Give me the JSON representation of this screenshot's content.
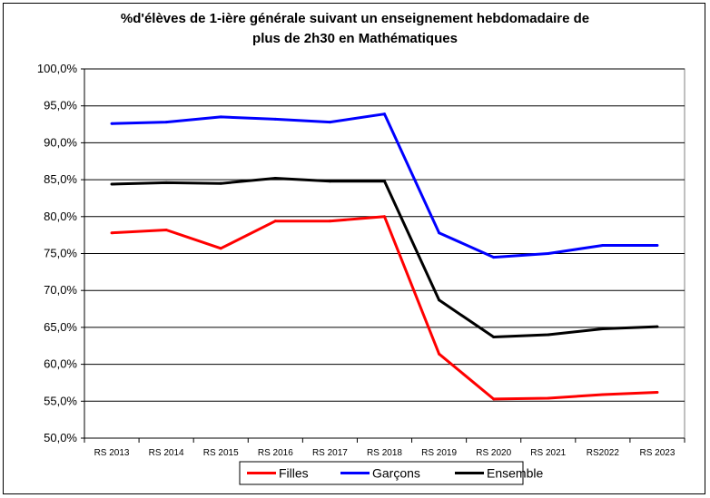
{
  "chart_data": {
    "type": "line",
    "title_line1": "%d'élèves de 1-ière générale suivant un enseignement hebdomadaire de",
    "title_line2": "plus de 2h30 en Mathématiques",
    "categories": [
      "RS 2013",
      "RS 2014",
      "RS 2015",
      "RS 2016",
      "RS 2017",
      "RS 2018",
      "RS 2019",
      "RS 2020",
      "RS 2021",
      "RS2022",
      "RS 2023"
    ],
    "ylim": [
      50,
      100
    ],
    "yticks": [
      50,
      55,
      60,
      65,
      70,
      75,
      80,
      85,
      90,
      95,
      100
    ],
    "ytick_labels": [
      "50,0%",
      "55,0%",
      "60,0%",
      "65,0%",
      "70,0%",
      "75,0%",
      "80,0%",
      "85,0%",
      "90,0%",
      "95,0%",
      "100,0%"
    ],
    "grid": true,
    "legend_position": "bottom",
    "series": [
      {
        "name": "Filles",
        "color": "#ff0000",
        "values": [
          77.8,
          78.2,
          75.7,
          79.4,
          79.4,
          80.0,
          61.4,
          55.3,
          55.4,
          55.9,
          56.2
        ]
      },
      {
        "name": "Garçons",
        "color": "#0000ff",
        "values": [
          92.6,
          92.8,
          93.5,
          93.2,
          92.8,
          93.9,
          77.8,
          74.5,
          75.0,
          76.1,
          76.1
        ]
      },
      {
        "name": "Ensemble",
        "color": "#000000",
        "values": [
          84.4,
          84.6,
          84.5,
          85.2,
          84.8,
          84.8,
          68.7,
          63.7,
          64.0,
          64.8,
          65.1
        ]
      }
    ]
  }
}
